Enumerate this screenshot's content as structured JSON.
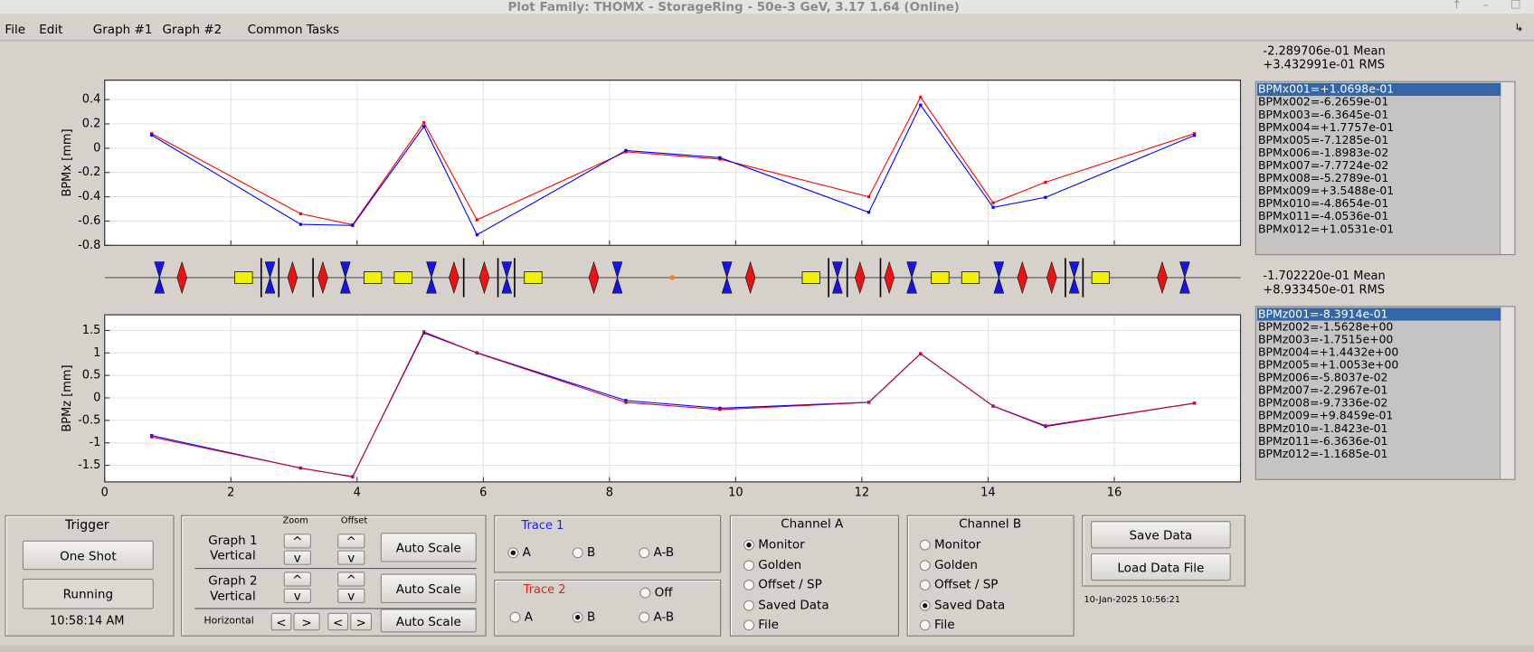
{
  "window": {
    "title": "Plot Family:  THOMX  -  StorageRing  -  50e-3 GeV, 3.17 1.64  (Online)"
  },
  "menu": [
    "File",
    "Edit",
    "Graph #1",
    "Graph #2",
    "Common Tasks"
  ],
  "charts": [
    {
      "type": "line",
      "ylabel": "BPMx [mm]",
      "x": [
        0.745,
        3.105,
        3.93,
        5.06,
        5.9,
        8.26,
        9.75,
        12.11,
        12.93,
        14.08,
        14.91,
        17.27
      ],
      "xlim": [
        0,
        18
      ],
      "xticks": [
        0,
        2,
        4,
        6,
        8,
        10,
        12,
        14,
        16
      ],
      "xtick_labels": false,
      "ylim": [
        -0.8,
        0.56
      ],
      "yticks": [
        0.4,
        0.2,
        0,
        -0.2,
        -0.4,
        -0.6,
        -0.8
      ],
      "grid": true,
      "series": [
        {
          "color": "#ff0000",
          "values": [
            0.12,
            -0.54,
            -0.63,
            0.21,
            -0.59,
            -0.03,
            -0.09,
            -0.4,
            0.42,
            -0.45,
            -0.28,
            0.12
          ]
        },
        {
          "color": "#0000ff",
          "values": [
            0.107,
            -0.627,
            -0.636,
            0.178,
            -0.713,
            -0.019,
            -0.078,
            -0.528,
            0.355,
            -0.487,
            -0.405,
            0.105
          ]
        }
      ]
    },
    {
      "type": "line",
      "ylabel": "BPMz [mm]",
      "x": [
        0.745,
        3.105,
        3.93,
        5.06,
        5.9,
        8.26,
        9.75,
        12.11,
        12.93,
        14.08,
        14.91,
        17.27
      ],
      "xlim": [
        0,
        18
      ],
      "xticks": [
        0,
        2,
        4,
        6,
        8,
        10,
        12,
        14,
        16
      ],
      "xtick_labels": true,
      "ylim": [
        -1.87,
        1.85
      ],
      "yticks": [
        1.5,
        1,
        0.5,
        0,
        -0.5,
        -1,
        -1.5
      ],
      "grid": true,
      "series": [
        {
          "color": "#0000ff",
          "values": [
            -0.839,
            -1.563,
            -1.752,
            1.443,
            1.005,
            -0.058,
            -0.23,
            -0.097,
            0.985,
            -0.184,
            -0.636,
            -0.117
          ]
        },
        {
          "color": "#cc0033",
          "values": [
            -0.87,
            -1.56,
            -1.76,
            1.47,
            1.0,
            -0.1,
            -0.26,
            -0.1,
            0.98,
            -0.18,
            -0.62,
            -0.12
          ]
        }
      ]
    }
  ],
  "stats": [
    {
      "mean": "-2.289706e-01 Mean",
      "rms": "+3.432991e-01 RMS"
    },
    {
      "mean": "-1.702220e-01 Mean",
      "rms": "+8.933450e-01 RMS"
    }
  ],
  "lists": [
    {
      "items": [
        "BPMx001=+1.0698e-01",
        "BPMx002=-6.2659e-01",
        "BPMx003=-6.3645e-01",
        "BPMx004=+1.7757e-01",
        "BPMx005=-7.1285e-01",
        "BPMx006=-1.8983e-02",
        "BPMx007=-7.7724e-02",
        "BPMx008=-5.2789e-01",
        "BPMx009=+3.5488e-01",
        "BPMx010=-4.8654e-01",
        "BPMx011=-4.0536e-01",
        "BPMx012=+1.0531e-01"
      ]
    },
    {
      "items": [
        "BPMz001=-8.3914e-01",
        "BPMz002=-1.5628e+00",
        "BPMz003=-1.7515e+00",
        "BPMz004=+1.4432e+00",
        "BPMz005=+1.0053e+00",
        "BPMz006=-5.8037e-02",
        "BPMz007=-2.2967e-01",
        "BPMz008=-9.7336e-02",
        "BPMz009=+9.8459e-01",
        "BPMz010=-1.8423e-01",
        "BPMz011=-6.3636e-01",
        "BPMz012=-1.1685e-01"
      ]
    }
  ],
  "trigger": {
    "title": "Trigger",
    "one_shot": "One Shot",
    "running": "Running",
    "time": "10:58:14 AM"
  },
  "scale": {
    "zoom": "Zoom",
    "offset": "Offset",
    "graph1": "Graph 1",
    "graph2": "Graph 2",
    "vertical": "Vertical",
    "horizontal": "Horizontal",
    "up": "^",
    "down": "v",
    "left": "<",
    "right": ">",
    "auto": "Auto Scale"
  },
  "trace1": {
    "title": "Trace 1",
    "options": [
      "A",
      "B",
      "A-B"
    ],
    "selected": 0
  },
  "trace2": {
    "title": "Trace 2",
    "options": [
      "Off",
      "A",
      "B",
      "A-B"
    ],
    "selected": 2
  },
  "channel_a": {
    "title": "Channel A",
    "options": [
      "Monitor",
      "Golden",
      "Offset / SP",
      "Saved Data",
      "File"
    ],
    "selected": 0
  },
  "channel_b": {
    "title": "Channel B",
    "options": [
      "Monitor",
      "Golden",
      "Offset / SP",
      "Saved Data",
      "File"
    ],
    "selected": 3
  },
  "files": {
    "save": "Save Data",
    "load": "Load Data File",
    "date": "10-Jan-2025 10:56:21"
  }
}
